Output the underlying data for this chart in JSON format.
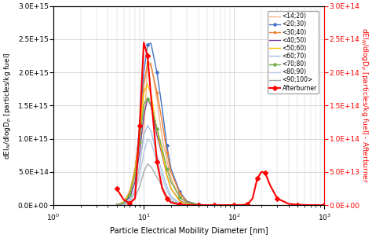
{
  "title": "",
  "xlabel": "Particle Electrical Mobility Diameter [nm]",
  "ylabel_left": "dEI$_N$/dlogD$_p$ [particles/kg fuel]",
  "ylabel_right": "dEI$_N$/dlogD$_p$ [particles/kg fuel] - Afterburner",
  "xlim": [
    1,
    1000
  ],
  "ylim_left": [
    0,
    3000000000000000.0
  ],
  "ylim_right": [
    0,
    300000000000000.0
  ],
  "yticks_left": [
    0,
    500000000000000.0,
    1000000000000000.0,
    1500000000000000.0,
    2000000000000000.0,
    2500000000000000.0,
    3000000000000000.0
  ],
  "yticks_right": [
    0,
    50000000000000.0,
    100000000000000.0,
    150000000000000.0,
    200000000000000.0,
    250000000000000.0,
    300000000000000.0
  ],
  "ytick_labels_left": [
    "0.0E+00",
    "5.0E+14",
    "1.0E+15",
    "1.5E+15",
    "2.0E+15",
    "2.5E+15",
    "3.0E+15"
  ],
  "ytick_labels_right": [
    "0.0E+00",
    "5.0E+13",
    "1.0E+14",
    "1.5E+14",
    "2.0E+14",
    "2.5E+14",
    "3.0E+14"
  ],
  "series": [
    {
      "label": "<14;20)",
      "color": "#f4b183",
      "marker": null,
      "linewidth": 1.0,
      "x": [
        5,
        6,
        7,
        8,
        9,
        10,
        11,
        12,
        14,
        16,
        20,
        25,
        30,
        40,
        50,
        70,
        100
      ],
      "y": [
        0,
        10000000000000.0,
        50000000000000.0,
        200000000000000.0,
        600000000000000.0,
        1100000000000000.0,
        2100000000000000.0,
        2150000000000000.0,
        1600000000000000.0,
        1000000000000000.0,
        400000000000000.0,
        120000000000000.0,
        40000000000000.0,
        5000000000000.0,
        1000000000000.0,
        0,
        0
      ]
    },
    {
      "label": "<20;30)",
      "color": "#4472c4",
      "marker": "D",
      "markersize": 2,
      "linewidth": 1.0,
      "x": [
        5,
        6,
        7,
        8,
        9,
        10,
        11,
        12,
        14,
        16,
        18,
        20,
        25,
        30,
        40,
        50,
        60,
        80,
        100
      ],
      "y": [
        0,
        30000000000000.0,
        150000000000000.0,
        500000000000000.0,
        1200000000000000.0,
        2000000000000000.0,
        2420000000000000.0,
        2440000000000000.0,
        2000000000000000.0,
        1450000000000000.0,
        900000000000000.0,
        550000000000000.0,
        200000000000000.0,
        60000000000000.0,
        10000000000000.0,
        2000000000000.0,
        500000000000.0,
        0,
        0
      ]
    },
    {
      "label": "<30;40)",
      "color": "#ed7d31",
      "marker": "s",
      "markersize": 2,
      "linewidth": 1.0,
      "x": [
        5,
        6,
        7,
        8,
        9,
        10,
        11,
        12,
        14,
        16,
        18,
        20,
        25,
        30,
        40,
        50,
        60,
        80,
        100
      ],
      "y": [
        0,
        50000000000000.0,
        200000000000000.0,
        550000000000000.0,
        1100000000000000.0,
        1800000000000000.0,
        2150000000000000.0,
        2100000000000000.0,
        1700000000000000.0,
        1250000000000000.0,
        800000000000000.0,
        500000000000000.0,
        180000000000000.0,
        50000000000000.0,
        8000000000000.0,
        1500000000000.0,
        300000000000.0,
        0,
        0
      ]
    },
    {
      "label": "<40;50)",
      "color": "#7b3f9e",
      "marker": null,
      "linewidth": 1.0,
      "x": [
        5,
        6,
        7,
        8,
        9,
        10,
        11,
        12,
        14,
        16,
        18,
        20,
        25,
        30,
        40,
        50,
        60,
        80,
        100
      ],
      "y": [
        0,
        30000000000000.0,
        120000000000000.0,
        350000000000000.0,
        800000000000000.0,
        1350000000000000.0,
        1600000000000000.0,
        1500000000000000.0,
        1050000000000000.0,
        750000000000000.0,
        450000000000000.0,
        250000000000000.0,
        70000000000000.0,
        18000000000000.0,
        3000000000000.0,
        600000000000.0,
        0,
        0,
        0
      ]
    },
    {
      "label": "<50;60)",
      "color": "#ffc000",
      "marker": null,
      "linewidth": 1.0,
      "x": [
        5,
        6,
        7,
        8,
        9,
        10,
        11,
        12,
        14,
        16,
        18,
        20,
        25,
        30,
        40,
        50,
        60,
        80,
        100
      ],
      "y": [
        0,
        50000000000000.0,
        180000000000000.0,
        500000000000000.0,
        1050000000000000.0,
        1700000000000000.0,
        1820000000000000.0,
        1680000000000000.0,
        1120000000000000.0,
        780000000000000.0,
        450000000000000.0,
        250000000000000.0,
        60000000000000.0,
        15000000000000.0,
        2500000000000.0,
        500000000000.0,
        0,
        0,
        0
      ]
    },
    {
      "label": "<60;70)",
      "color": "#9dc3e6",
      "marker": null,
      "linewidth": 1.0,
      "x": [
        5,
        6,
        7,
        8,
        9,
        10,
        11,
        12,
        14,
        16,
        18,
        20,
        25,
        30,
        40,
        50,
        60,
        80,
        100
      ],
      "y": [
        0,
        20000000000000.0,
        80000000000000.0,
        250000000000000.0,
        600000000000000.0,
        1050000000000000.0,
        1200000000000000.0,
        1120000000000000.0,
        750000000000000.0,
        500000000000000.0,
        280000000000000.0,
        130000000000000.0,
        30000000000000.0,
        7000000000000.0,
        1000000000000.0,
        200000000000.0,
        0,
        0,
        0
      ]
    },
    {
      "label": "<70;80)",
      "color": "#70ad47",
      "marker": "D",
      "markersize": 2,
      "linewidth": 1.0,
      "x": [
        5,
        6,
        7,
        8,
        9,
        10,
        11,
        12,
        14,
        16,
        18,
        20,
        25,
        30,
        40,
        50,
        60,
        80,
        100
      ],
      "y": [
        0,
        40000000000000.0,
        150000000000000.0,
        450000000000000.0,
        950000000000000.0,
        1520000000000000.0,
        1600000000000000.0,
        1520000000000000.0,
        1150000000000000.0,
        850000000000000.0,
        550000000000000.0,
        350000000000000.0,
        120000000000000.0,
        40000000000000.0,
        10000000000000.0,
        2500000000000.0,
        600000000000.0,
        0,
        0
      ]
    },
    {
      "label": "<80;90)",
      "color": "#b4c7e7",
      "marker": null,
      "linewidth": 1.0,
      "x": [
        5,
        6,
        7,
        8,
        9,
        10,
        11,
        12,
        14,
        16,
        18,
        20,
        25,
        30,
        40,
        50,
        60,
        80,
        100
      ],
      "y": [
        0,
        15000000000000.0,
        50000000000000.0,
        180000000000000.0,
        450000000000000.0,
        780000000000000.0,
        1000000000000000.0,
        950000000000000.0,
        650000000000000.0,
        420000000000000.0,
        220000000000000.0,
        100000000000000.0,
        25000000000000.0,
        6000000000000.0,
        1000000000000.0,
        200000000000.0,
        0,
        0,
        0
      ]
    },
    {
      "label": "<90;100>",
      "color": "#a8a8a8",
      "marker": null,
      "linewidth": 1.0,
      "x": [
        5,
        6,
        7,
        8,
        9,
        10,
        11,
        12,
        14,
        16,
        18,
        20,
        25,
        30,
        40,
        50,
        60,
        80,
        100
      ],
      "y": [
        0,
        10000000000000.0,
        35000000000000.0,
        110000000000000.0,
        280000000000000.0,
        500000000000000.0,
        620000000000000.0,
        580000000000000.0,
        420000000000000.0,
        280000000000000.0,
        140000000000000.0,
        65000000000000.0,
        15000000000000.0,
        4000000000000.0,
        700000000000.0,
        150000000000.0,
        0,
        0,
        0
      ]
    }
  ],
  "afterburner": {
    "label": "Afterburner",
    "color": "#ff0000",
    "marker": "D",
    "markersize": 3,
    "linewidth": 1.5,
    "x": [
      5,
      6,
      7,
      8,
      9,
      10,
      11,
      12,
      14,
      16,
      18,
      20,
      25,
      30,
      40,
      50,
      60,
      80,
      100,
      120,
      140,
      160,
      180,
      200,
      220,
      250,
      300,
      400,
      500,
      700,
      1000
    ],
    "y": [
      25000000000000.0,
      8000000000000.0,
      3000000000000.0,
      10000000000000.0,
      120000000000000.0,
      245000000000000.0,
      225000000000000.0,
      165000000000000.0,
      65000000000000.0,
      25000000000000.0,
      10000000000000.0,
      4000000000000.0,
      800000000000.0,
      200000000000.0,
      50000000000.0,
      20000000000.0,
      20000000000.0,
      20000000000.0,
      50000000000.0,
      200000000000.0,
      1000000000000.0,
      10000000000000.0,
      40000000000000.0,
      50000000000000.0,
      49000000000000.0,
      30000000000000.0,
      10000000000000.0,
      2000000000000.0,
      600000000000.0,
      100000000000.0,
      0
    ]
  },
  "background_color": "#ffffff",
  "grid_color": "#c8c8c8"
}
